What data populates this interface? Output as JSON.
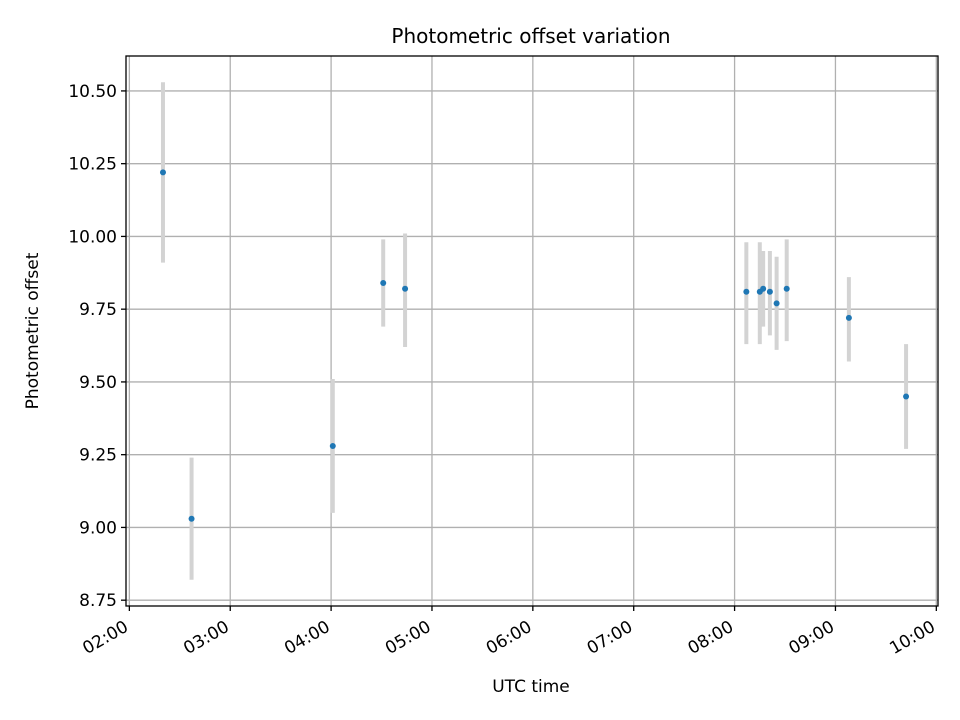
{
  "chart_data": {
    "type": "scatter",
    "title": "Photometric offset variation",
    "xlabel": "UTC time",
    "ylabel": "Photometric offset",
    "xlim": [
      "01:58",
      "10:01"
    ],
    "ylim": [
      8.73,
      10.62
    ],
    "x_ticks": [
      "02:00",
      "03:00",
      "04:00",
      "05:00",
      "06:00",
      "07:00",
      "08:00",
      "09:00",
      "10:00"
    ],
    "y_ticks": [
      "8.75",
      "9.00",
      "9.25",
      "9.50",
      "9.75",
      "10.00",
      "10.25",
      "10.50"
    ],
    "grid": true,
    "marker_color": "#1f77b4",
    "errorbar_color": "#d3d3d3",
    "points": [
      {
        "x": "02:20",
        "y": 10.22,
        "yerr_low": 9.91,
        "yerr_high": 10.53
      },
      {
        "x": "02:37",
        "y": 9.03,
        "yerr_low": 8.82,
        "yerr_high": 9.24
      },
      {
        "x": "04:01",
        "y": 9.28,
        "yerr_low": 9.05,
        "yerr_high": 9.51
      },
      {
        "x": "04:31",
        "y": 9.84,
        "yerr_low": 9.69,
        "yerr_high": 9.99
      },
      {
        "x": "04:44",
        "y": 9.82,
        "yerr_low": 9.62,
        "yerr_high": 10.01
      },
      {
        "x": "08:07",
        "y": 9.81,
        "yerr_low": 9.63,
        "yerr_high": 9.98
      },
      {
        "x": "08:15",
        "y": 9.81,
        "yerr_low": 9.63,
        "yerr_high": 9.98
      },
      {
        "x": "08:17",
        "y": 9.82,
        "yerr_low": 9.69,
        "yerr_high": 9.95
      },
      {
        "x": "08:21",
        "y": 9.81,
        "yerr_low": 9.66,
        "yerr_high": 9.95
      },
      {
        "x": "08:25",
        "y": 9.77,
        "yerr_low": 9.61,
        "yerr_high": 9.93
      },
      {
        "x": "08:31",
        "y": 9.82,
        "yerr_low": 9.64,
        "yerr_high": 9.99
      },
      {
        "x": "09:08",
        "y": 9.72,
        "yerr_low": 9.57,
        "yerr_high": 9.86
      },
      {
        "x": "09:42",
        "y": 9.45,
        "yerr_low": 9.27,
        "yerr_high": 9.63
      }
    ]
  }
}
